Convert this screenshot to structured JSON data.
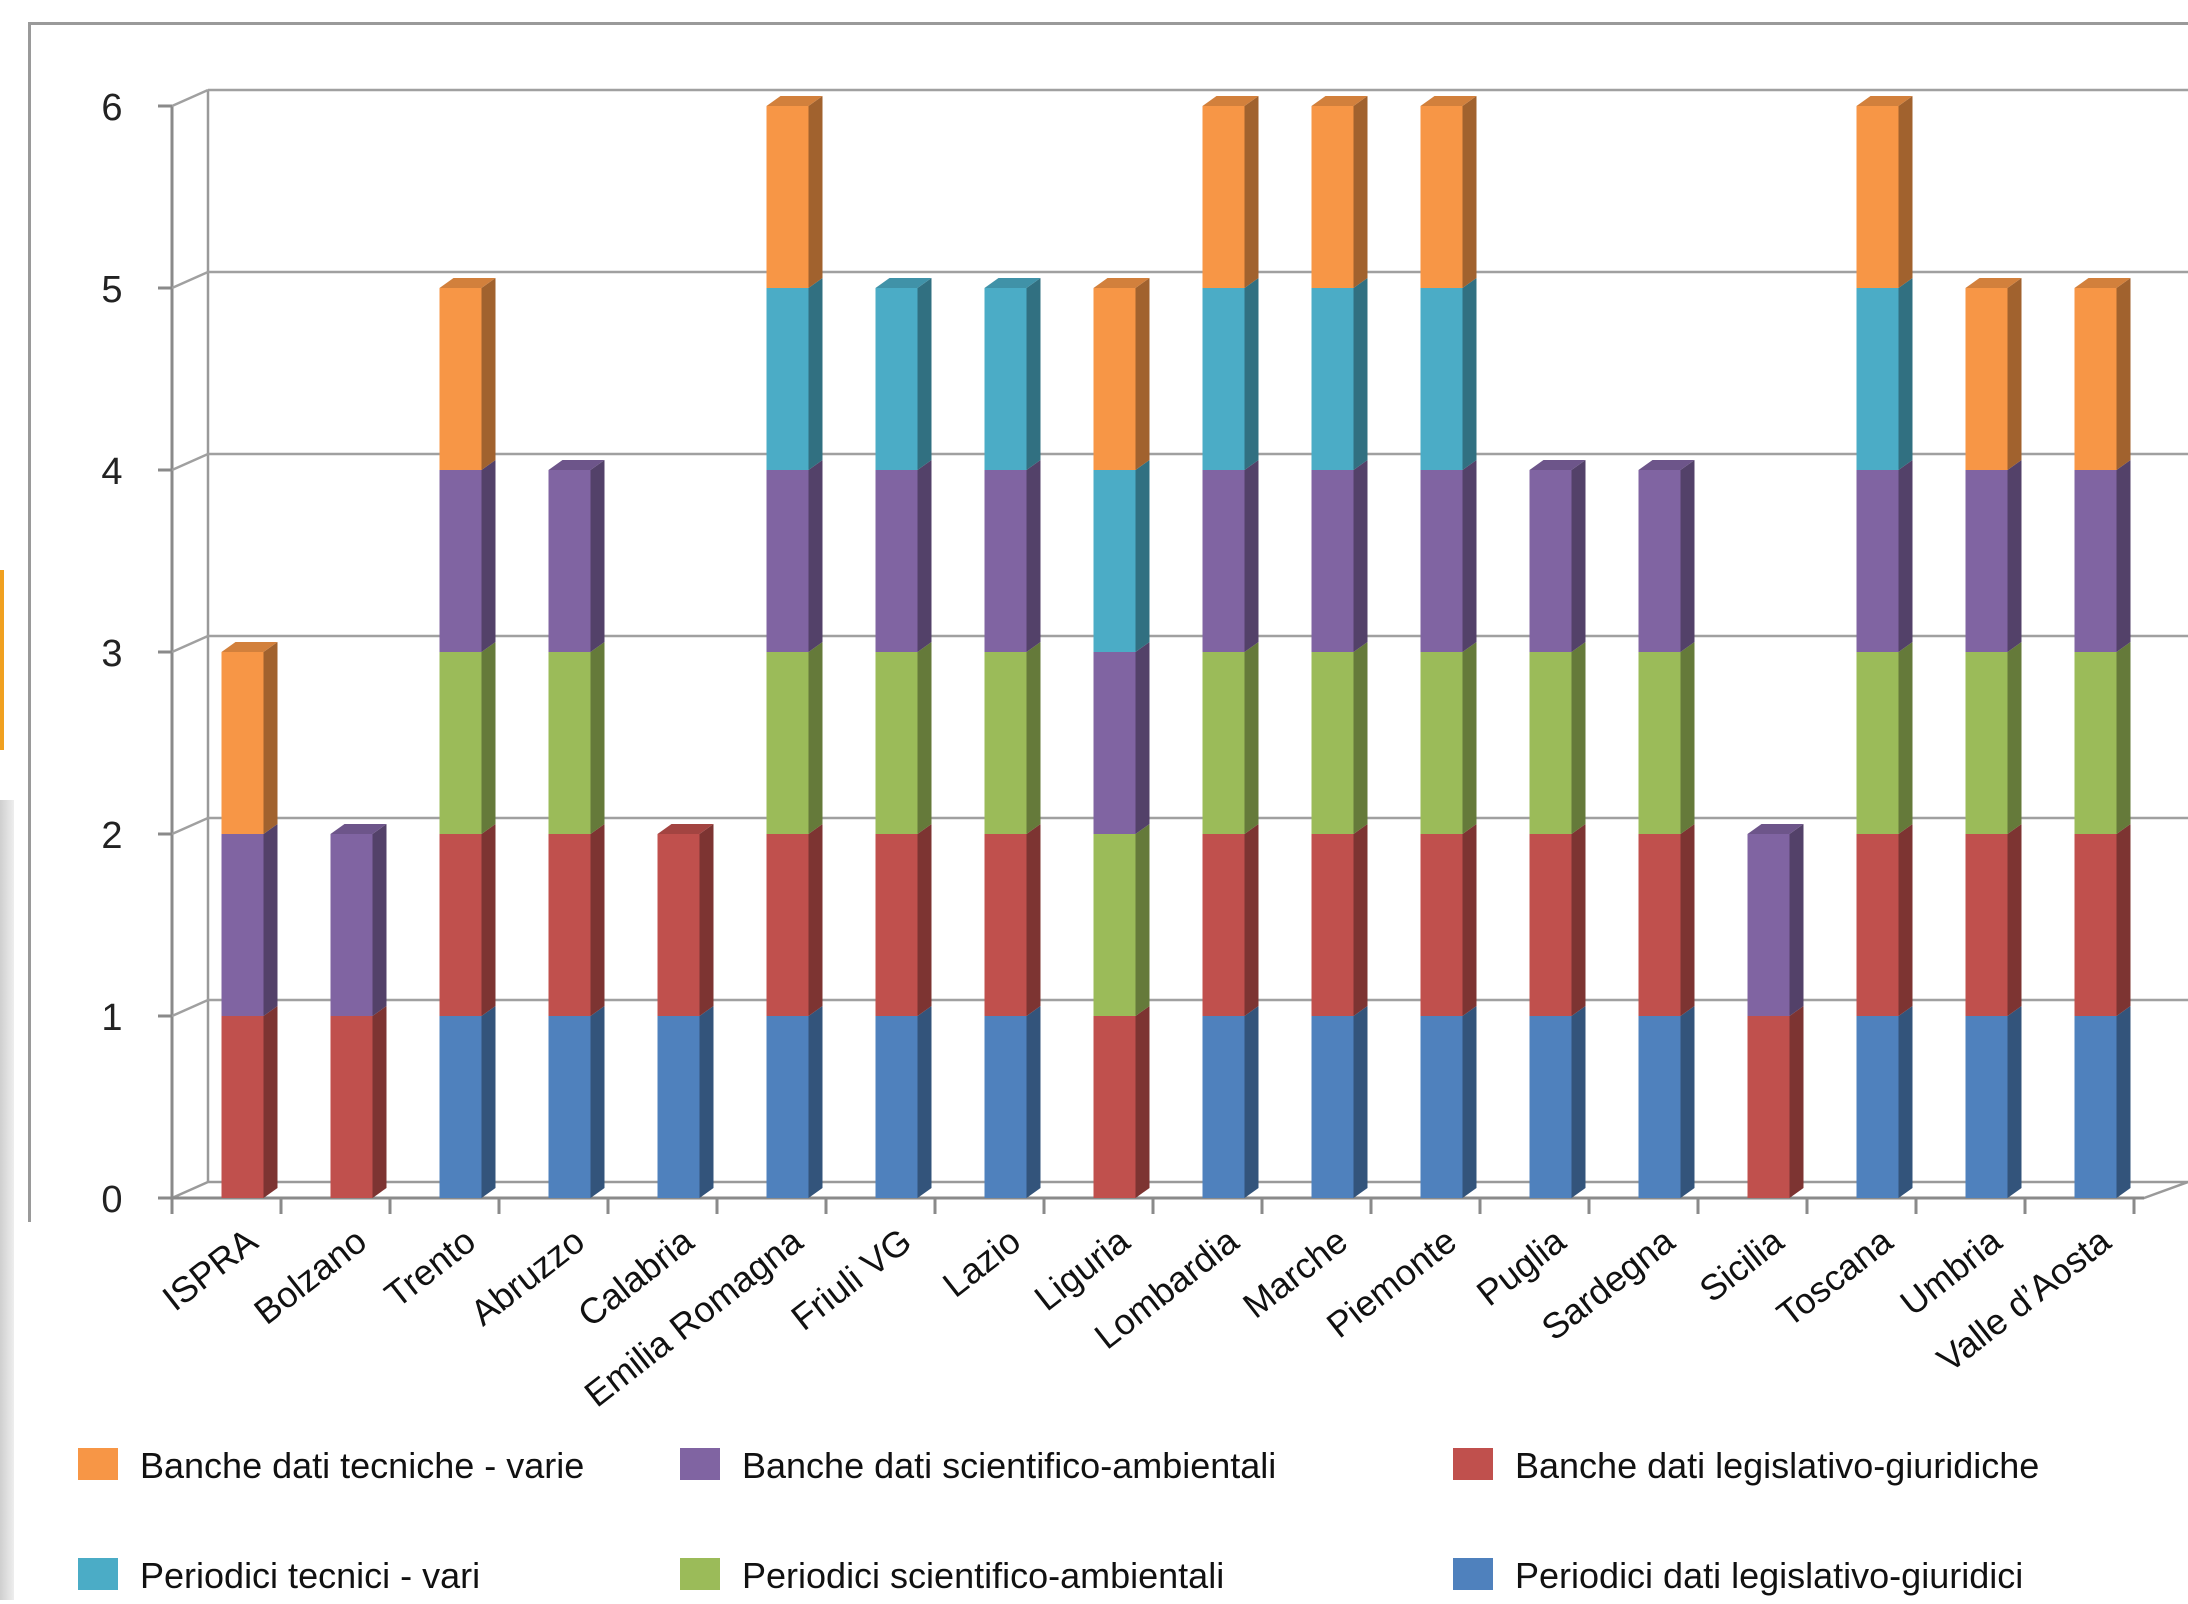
{
  "chart_data": {
    "type": "bar",
    "stacked": true,
    "three_d": true,
    "title": "",
    "xlabel": "",
    "ylabel": "",
    "ylim": [
      0,
      6
    ],
    "yticks": [
      "0",
      "1",
      "2",
      "3",
      "4",
      "5",
      "6"
    ],
    "grid": true,
    "legend_position": "bottom",
    "categories": [
      "ISPRA",
      "Bolzano",
      "Trento",
      "Abruzzo",
      "Calabria",
      "Emilia Romagna",
      "Friuli VG",
      "Lazio",
      "Liguria",
      "Lombardia",
      "Marche",
      "Piemonte",
      "Puglia",
      "Sardegna",
      "Sicilia",
      "Toscana",
      "Umbria",
      "Valle d’Aosta"
    ],
    "series": [
      {
        "name": "Periodici dati legislativo-giuridici",
        "color": "#4f81bd",
        "values": [
          0,
          0,
          1,
          1,
          1,
          1,
          1,
          1,
          0,
          1,
          1,
          1,
          1,
          1,
          0,
          1,
          1,
          1
        ]
      },
      {
        "name": "Banche dati legislativo-giuridiche",
        "color": "#c0504d",
        "values": [
          1,
          1,
          1,
          1,
          1,
          1,
          1,
          1,
          1,
          1,
          1,
          1,
          1,
          1,
          1,
          1,
          1,
          1
        ]
      },
      {
        "name": "Periodici scientifico-ambientali",
        "color": "#9bbb59",
        "values": [
          0,
          0,
          1,
          1,
          0,
          1,
          1,
          1,
          1,
          1,
          1,
          1,
          1,
          1,
          0,
          1,
          1,
          1
        ]
      },
      {
        "name": "Banche dati scientifico-ambientali",
        "color": "#8064a2",
        "values": [
          1,
          1,
          1,
          1,
          0,
          1,
          1,
          1,
          1,
          1,
          1,
          1,
          1,
          1,
          1,
          1,
          1,
          1
        ]
      },
      {
        "name": "Periodici tecnici - vari",
        "color": "#4bacc6",
        "values": [
          0,
          0,
          0,
          0,
          0,
          1,
          1,
          1,
          1,
          1,
          1,
          1,
          0,
          0,
          0,
          1,
          0,
          0
        ]
      },
      {
        "name": "Banche dati tecniche - varie",
        "color": "#f79646",
        "values": [
          1,
          0,
          1,
          0,
          0,
          1,
          0,
          0,
          1,
          1,
          1,
          1,
          0,
          0,
          0,
          1,
          1,
          1
        ]
      }
    ],
    "legend_order": [
      "Banche dati tecniche - varie",
      "Banche dati scientifico-ambientali",
      "Banche dati legislativo-giuridiche",
      "Periodici tecnici - vari",
      "Periodici scientifico-ambientali",
      "Periodici dati legislativo-giuridici"
    ]
  }
}
